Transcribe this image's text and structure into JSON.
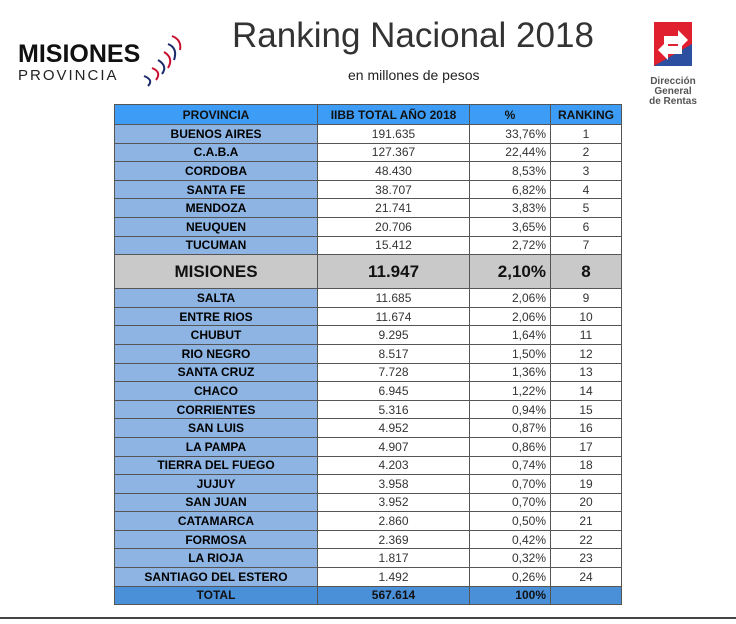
{
  "logo_left": {
    "line1": "MISIONES",
    "line2": "PROVINCIA"
  },
  "title": "Ranking Nacional 2018",
  "subtitle": "en millones de pesos",
  "logo_right": {
    "text1": "Dirección",
    "text2": "General",
    "text3": "de Rentas"
  },
  "table": {
    "headers": [
      "PROVINCIA",
      "IIBB TOTAL AÑO 2018",
      "%",
      "RANKING"
    ],
    "rows": [
      [
        "BUENOS AIRES",
        "191.635",
        "33,76%",
        "1"
      ],
      [
        "C.A.B.A",
        "127.367",
        "22,44%",
        "2"
      ],
      [
        "CORDOBA",
        "48.430",
        "8,53%",
        "3"
      ],
      [
        "SANTA FE",
        "38.707",
        "6,82%",
        "4"
      ],
      [
        "MENDOZA",
        "21.741",
        "3,83%",
        "5"
      ],
      [
        "NEUQUEN",
        "20.706",
        "3,65%",
        "6"
      ],
      [
        "TUCUMAN",
        "15.412",
        "2,72%",
        "7"
      ],
      [
        "MISIONES",
        "11.947",
        "2,10%",
        "8"
      ],
      [
        "SALTA",
        "11.685",
        "2,06%",
        "9"
      ],
      [
        "ENTRE RIOS",
        "11.674",
        "2,06%",
        "10"
      ],
      [
        "CHUBUT",
        "9.295",
        "1,64%",
        "11"
      ],
      [
        "RIO NEGRO",
        "8.517",
        "1,50%",
        "12"
      ],
      [
        "SANTA CRUZ",
        "7.728",
        "1,36%",
        "13"
      ],
      [
        "CHACO",
        "6.945",
        "1,22%",
        "14"
      ],
      [
        "CORRIENTES",
        "5.316",
        "0,94%",
        "15"
      ],
      [
        "SAN LUIS",
        "4.952",
        "0,87%",
        "16"
      ],
      [
        "LA PAMPA",
        "4.907",
        "0,86%",
        "17"
      ],
      [
        "TIERRA DEL FUEGO",
        "4.203",
        "0,74%",
        "18"
      ],
      [
        "JUJUY",
        "3.958",
        "0,70%",
        "19"
      ],
      [
        "SAN JUAN",
        "3.952",
        "0,70%",
        "20"
      ],
      [
        "CATAMARCA",
        "2.860",
        "0,50%",
        "21"
      ],
      [
        "FORMOSA",
        "2.369",
        "0,42%",
        "22"
      ],
      [
        "LA RIOJA",
        "1.817",
        "0,32%",
        "23"
      ],
      [
        "SANTIAGO DEL ESTERO",
        "1.492",
        "0,26%",
        "24"
      ]
    ],
    "highlight_index": 7,
    "total": [
      "TOTAL",
      "567.614",
      "100%",
      ""
    ]
  }
}
